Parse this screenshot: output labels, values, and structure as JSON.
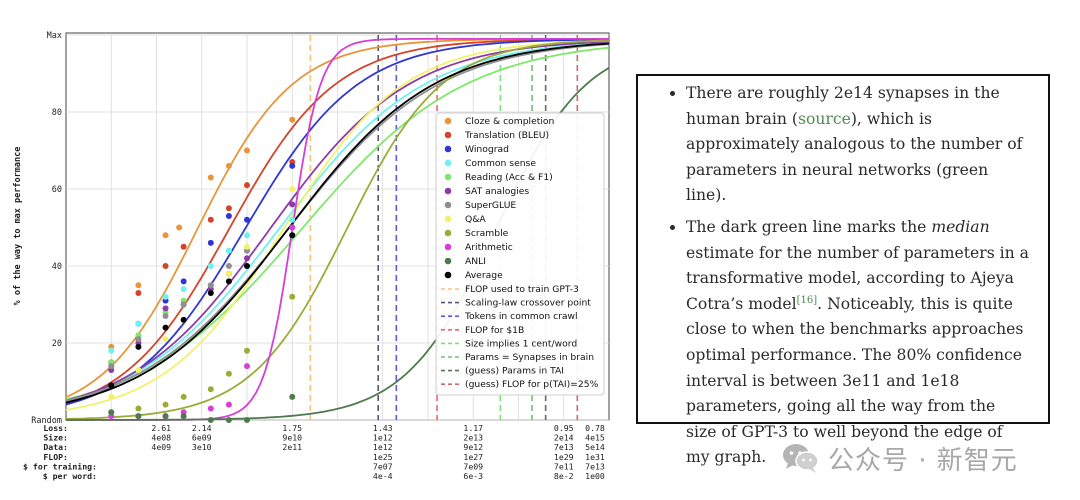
{
  "chart_data": {
    "type": "scatter",
    "ylabel": "% of the way to max performance",
    "ytick_labels": [
      "Random",
      "20",
      "40",
      "60",
      "80",
      "Max"
    ],
    "ylim": [
      0,
      100
    ],
    "xlim": [
      0,
      12
    ],
    "bottom_rows": [
      {
        "label": "Loss:",
        "values": [
          "2.61",
          "2.14",
          "1.75",
          "1.43",
          "1.17",
          "0.95",
          "0.78"
        ]
      },
      {
        "label": "Size:",
        "values": [
          "4e08",
          "6e09",
          "9e10",
          "1e12",
          "2e13",
          "2e14",
          "4e15"
        ]
      },
      {
        "label": "Data:",
        "values": [
          "4e09",
          "3e10",
          "2e11",
          "1e12",
          "9e12",
          "7e13",
          "5e14"
        ]
      },
      {
        "label": "FLOP:",
        "values": [
          "",
          "",
          "",
          "1e25",
          "1e27",
          "1e29",
          "1e31"
        ]
      },
      {
        "label": "$ for training:",
        "values": [
          "",
          "",
          "",
          "7e07",
          "7e09",
          "7e11",
          "7e13"
        ]
      },
      {
        "label": "$ per word:",
        "values": [
          "",
          "",
          "",
          "4e-4",
          "6e-3",
          "8e-2",
          "1e00"
        ]
      }
    ],
    "series": [
      {
        "name": "Cloze & completion",
        "color": "#e8953a",
        "mid": 2.9,
        "slope": 0.95,
        "points": [
          [
            1,
            19
          ],
          [
            1.6,
            35
          ],
          [
            2.2,
            48
          ],
          [
            2.5,
            50
          ],
          [
            3.2,
            63
          ],
          [
            3.6,
            66
          ],
          [
            4,
            70
          ],
          [
            5,
            78
          ]
        ]
      },
      {
        "name": "Translation (BLEU)",
        "color": "#d2452b",
        "mid": 3.6,
        "slope": 0.85,
        "points": [
          [
            1,
            14
          ],
          [
            1.6,
            33
          ],
          [
            2.2,
            40
          ],
          [
            2.6,
            45
          ],
          [
            3.2,
            52
          ],
          [
            3.6,
            55
          ],
          [
            4,
            61
          ],
          [
            5,
            67
          ]
        ]
      },
      {
        "name": "Winograd",
        "color": "#2f37d0",
        "mid": 3.95,
        "slope": 0.8,
        "points": [
          [
            1,
            15
          ],
          [
            1.6,
            25
          ],
          [
            2.2,
            31
          ],
          [
            2.6,
            36
          ],
          [
            3.2,
            46
          ],
          [
            3.6,
            53
          ],
          [
            4,
            52
          ],
          [
            5,
            66
          ]
        ]
      },
      {
        "name": "Common sense",
        "color": "#6ef2ef",
        "mid": 4.7,
        "slope": 0.62,
        "points": [
          [
            1,
            18
          ],
          [
            1.6,
            25
          ],
          [
            2.2,
            32
          ],
          [
            2.6,
            34
          ],
          [
            3.2,
            40
          ],
          [
            3.6,
            44
          ],
          [
            4,
            48
          ],
          [
            5,
            52
          ]
        ]
      },
      {
        "name": "Reading (Acc & F1)",
        "color": "#7fe86a",
        "mid": 5.2,
        "slope": 0.55,
        "points": [
          [
            1,
            15
          ],
          [
            1.6,
            22
          ],
          [
            2.2,
            28
          ],
          [
            2.6,
            31
          ],
          [
            3.2,
            35
          ],
          [
            3.6,
            38
          ],
          [
            4,
            44
          ],
          [
            5,
            50
          ]
        ]
      },
      {
        "name": "SAT analogies",
        "color": "#8e3aa8",
        "mid": 4.5,
        "slope": 0.65,
        "points": [
          [
            1,
            13
          ],
          [
            1.6,
            20
          ],
          [
            2.2,
            29
          ],
          [
            2.6,
            30
          ],
          [
            3.2,
            34
          ],
          [
            3.6,
            38
          ],
          [
            4,
            42
          ],
          [
            5,
            56
          ]
        ]
      },
      {
        "name": "SuperGLUE",
        "color": "#8f8f8f",
        "mid": 4.9,
        "slope": 0.6,
        "points": [
          [
            1,
            14
          ],
          [
            1.6,
            21
          ],
          [
            2.2,
            27
          ],
          [
            2.6,
            30
          ],
          [
            3.2,
            35
          ],
          [
            3.6,
            40
          ],
          [
            4,
            44
          ],
          [
            5,
            48
          ]
        ]
      },
      {
        "name": "Q&A",
        "color": "#f2f26a",
        "mid": 4.8,
        "slope": 0.75,
        "points": [
          [
            1,
            6
          ],
          [
            1.6,
            13
          ],
          [
            2.2,
            21
          ],
          [
            2.6,
            26
          ],
          [
            3.2,
            33
          ],
          [
            3.6,
            38
          ],
          [
            4,
            45
          ],
          [
            5,
            60
          ]
        ]
      },
      {
        "name": "Scramble",
        "color": "#9aab3a",
        "mid": 6.2,
        "slope": 0.95,
        "points": [
          [
            1,
            2
          ],
          [
            1.6,
            3
          ],
          [
            2.2,
            4
          ],
          [
            2.6,
            6
          ],
          [
            3.2,
            8
          ],
          [
            3.6,
            12
          ],
          [
            4,
            18
          ],
          [
            5,
            32
          ]
        ]
      },
      {
        "name": "Arithmetic",
        "color": "#d63fd6",
        "mid": 5.0,
        "slope": 3.2,
        "points": [
          [
            1,
            1
          ],
          [
            1.6,
            1
          ],
          [
            2.2,
            1
          ],
          [
            2.6,
            2
          ],
          [
            3.2,
            3
          ],
          [
            3.6,
            4
          ],
          [
            4,
            14
          ],
          [
            5,
            50
          ]
        ]
      },
      {
        "name": "ANLI",
        "color": "#4e7a4e",
        "mid": 9.5,
        "slope": 1.0,
        "points": [
          [
            1,
            2
          ],
          [
            1.6,
            1
          ],
          [
            2.2,
            1
          ],
          [
            2.6,
            1
          ],
          [
            3.2,
            0
          ],
          [
            3.6,
            0
          ],
          [
            4,
            0
          ],
          [
            5,
            6
          ]
        ]
      },
      {
        "name": "Average",
        "color": "#000000",
        "mid": 4.9,
        "slope": 0.62,
        "points": [
          [
            1,
            9
          ],
          [
            1.6,
            19
          ],
          [
            2.2,
            24
          ],
          [
            2.6,
            26
          ],
          [
            3.2,
            33
          ],
          [
            3.6,
            36
          ],
          [
            4,
            40
          ],
          [
            5,
            48
          ]
        ]
      }
    ],
    "vlines": [
      {
        "name": "FLOP used to train GPT-3",
        "color": "#f5c27a",
        "x": 5.4
      },
      {
        "name": "Scaling-law crossover point",
        "color": "#555577",
        "x": 6.9
      },
      {
        "name": "Tokens in common crawl",
        "color": "#5a5ae0",
        "x": 7.3
      },
      {
        "name": "FLOP for $1B",
        "color": "#ee6666",
        "x": 8.2
      },
      {
        "name": "Size implies 1 cent/word",
        "color": "#7be07b",
        "x": 9.6
      },
      {
        "name": "Params = Synapses in brain",
        "color": "#77bb77",
        "x": 10.3
      },
      {
        "name": "(guess) Params in TAI",
        "color": "#557755",
        "x": 10.6
      },
      {
        "name": "(guess) FLOP for p(TAI)=25%",
        "color": "#c96b6b",
        "x": 11.3
      }
    ]
  },
  "text_panel": {
    "bullet1_a": "There are roughly 2e14 synapses in the human brain (",
    "bullet1_link": "source",
    "bullet1_b": "), which is approximately analogous to the number of parameters in neural networks (green line).",
    "bullet2_a": "The dark green line marks the ",
    "bullet2_em": "median",
    "bullet2_b": " estimate for the number of parameters in a transformative model, according to Ajeya Cotra’s model",
    "bullet2_ref": "[16]",
    "bullet2_c": ". Noticeably, this is quite close to when the benchmarks approaches optimal performance. The 80% confidence interval is between 3e11 and 1e18 parameters, going all the way from the size of GPT-3 to well beyond the edge of my graph."
  },
  "watermark": {
    "text": "公众号 · 新智元",
    "icon": "wechat-icon"
  }
}
